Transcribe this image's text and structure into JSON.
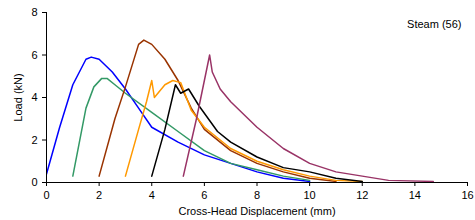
{
  "chart_data": {
    "type": "line",
    "x_label": "Cross-Head Displacement (mm)",
    "y_label": "Load (kN)",
    "annotations": [
      "Steam (56)"
    ],
    "xlim": [
      0,
      16
    ],
    "xticks": [
      0,
      2,
      4,
      6,
      8,
      10,
      12,
      14,
      16
    ],
    "ylim": [
      0,
      8
    ],
    "yticks": [
      0,
      2,
      4,
      6,
      8
    ],
    "grid": false,
    "series": [
      {
        "color": "#0000FF",
        "x": [
          0,
          0.5,
          1,
          1.5,
          1.7,
          2,
          2.5,
          3,
          3.5,
          4,
          5,
          6,
          7,
          8,
          9,
          10
        ],
        "values": [
          0.4,
          2.6,
          4.6,
          5.8,
          5.9,
          5.8,
          5.2,
          4.4,
          3.5,
          2.6,
          1.9,
          1.3,
          0.9,
          0.5,
          0.2,
          0.05
        ]
      },
      {
        "color": "#339966",
        "x": [
          1,
          1.5,
          1.8,
          2.1,
          2.3,
          2.6,
          3,
          4,
          5,
          6,
          7,
          8,
          9,
          10
        ],
        "values": [
          0.3,
          3.5,
          4.5,
          4.9,
          4.9,
          4.6,
          4.2,
          3.3,
          2.4,
          1.5,
          0.9,
          0.6,
          0.3,
          0.1
        ]
      },
      {
        "color": "#993300",
        "x": [
          2,
          2.6,
          3,
          3.5,
          3.7,
          4,
          4.5,
          5,
          5.5,
          6,
          7,
          8,
          9,
          10,
          11
        ],
        "values": [
          0.3,
          3,
          4.5,
          6.5,
          6.7,
          6.5,
          5.8,
          4.8,
          3.5,
          2.5,
          1.5,
          0.9,
          0.5,
          0.2,
          0.05
        ]
      },
      {
        "color": "#FF9900",
        "x": [
          3,
          3.5,
          3.8,
          4,
          4.1,
          4.5,
          4.8,
          5.1,
          5.5,
          6,
          7,
          8,
          9,
          10,
          11,
          12
        ],
        "values": [
          0.3,
          2.5,
          3.8,
          4.8,
          4,
          4.6,
          4.8,
          4.7,
          3.4,
          2.6,
          1.6,
          1,
          0.6,
          0.3,
          0.1,
          0.05
        ]
      },
      {
        "color": "#000000",
        "x": [
          4,
          4.5,
          4.9,
          5.1,
          5.4,
          5.8,
          6.5,
          7,
          8,
          9,
          10,
          11,
          12
        ],
        "values": [
          0.3,
          2.5,
          4.6,
          4.2,
          4.4,
          3.6,
          2.4,
          1.9,
          1.2,
          0.7,
          0.5,
          0.2,
          0.05
        ]
      },
      {
        "color": "#993366",
        "x": [
          5.2,
          5.7,
          6.1,
          6.2,
          6.3,
          6.6,
          7,
          8,
          9,
          10,
          11,
          12,
          13,
          14.7
        ],
        "values": [
          0.3,
          3,
          5.4,
          6,
          5.2,
          4.4,
          3.8,
          2.6,
          1.6,
          0.9,
          0.5,
          0.3,
          0.1,
          0.05
        ]
      }
    ]
  }
}
